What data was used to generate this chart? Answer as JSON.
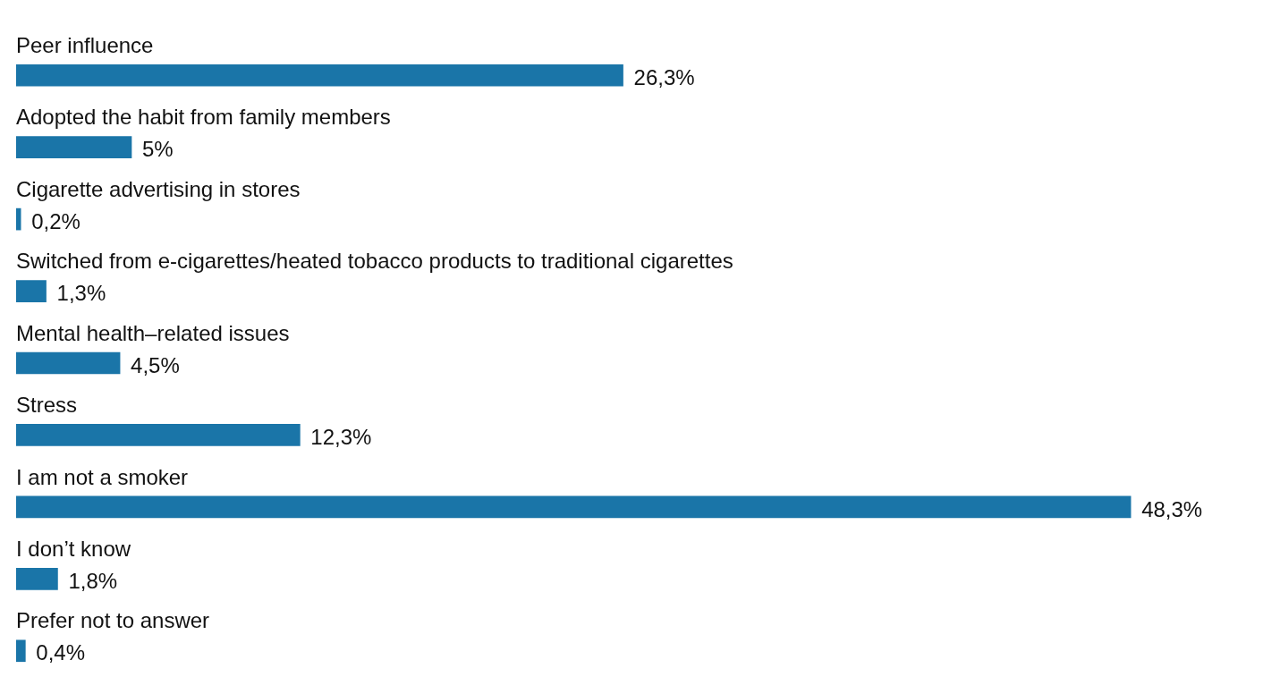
{
  "chart_data": {
    "type": "bar",
    "orientation": "horizontal",
    "categories": [
      "Peer influence",
      "Adopted the habit from family members",
      "Cigarette advertising in stores",
      "Switched from e-cigarettes/heated tobacco products to traditional cigarettes",
      "Mental health–related issues",
      "Stress",
      "I am not a smoker",
      "I don’t know",
      "Prefer not to answer"
    ],
    "values": [
      26.3,
      5,
      0.2,
      1.3,
      4.5,
      12.3,
      48.3,
      1.8,
      0.4
    ],
    "value_labels": [
      "26,3%",
      "5%",
      "0,2%",
      "1,3%",
      "4,5%",
      "12,3%",
      "48,3%",
      "1,8%",
      "0,4%"
    ],
    "color": "#1a75a8",
    "legend": false
  }
}
